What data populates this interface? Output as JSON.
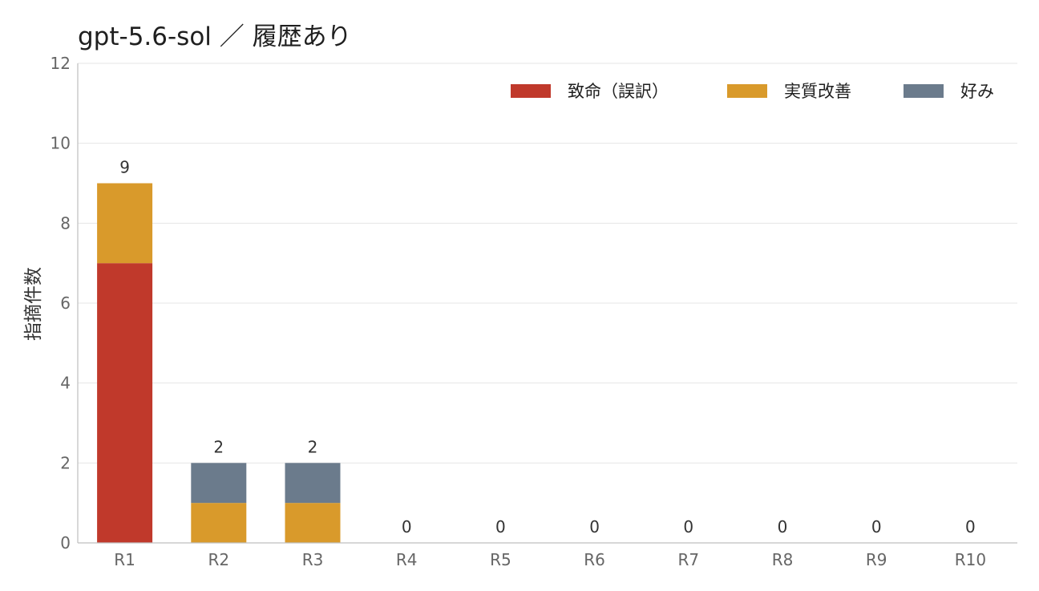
{
  "chart_data": {
    "type": "bar",
    "stacked": true,
    "title": "gpt-5.6-sol ／ 履歴あり",
    "xlabel": "",
    "ylabel": "指摘件数",
    "ylim": [
      0,
      12
    ],
    "yticks": [
      0,
      2,
      4,
      6,
      8,
      10,
      12
    ],
    "grid": true,
    "legend_position": "top-right",
    "categories": [
      "R1",
      "R2",
      "R3",
      "R4",
      "R5",
      "R6",
      "R7",
      "R8",
      "R9",
      "R10"
    ],
    "series": [
      {
        "name": "致命（誤訳）",
        "color": "#c0392b",
        "values": [
          7,
          0,
          0,
          0,
          0,
          0,
          0,
          0,
          0,
          0
        ]
      },
      {
        "name": "実質改善",
        "color": "#d99a2b",
        "values": [
          2,
          1,
          1,
          0,
          0,
          0,
          0,
          0,
          0,
          0
        ]
      },
      {
        "name": "好み",
        "color": "#6b7b8c",
        "values": [
          0,
          1,
          1,
          0,
          0,
          0,
          0,
          0,
          0,
          0
        ]
      }
    ],
    "totals": [
      9,
      2,
      2,
      0,
      0,
      0,
      0,
      0,
      0,
      0
    ]
  }
}
